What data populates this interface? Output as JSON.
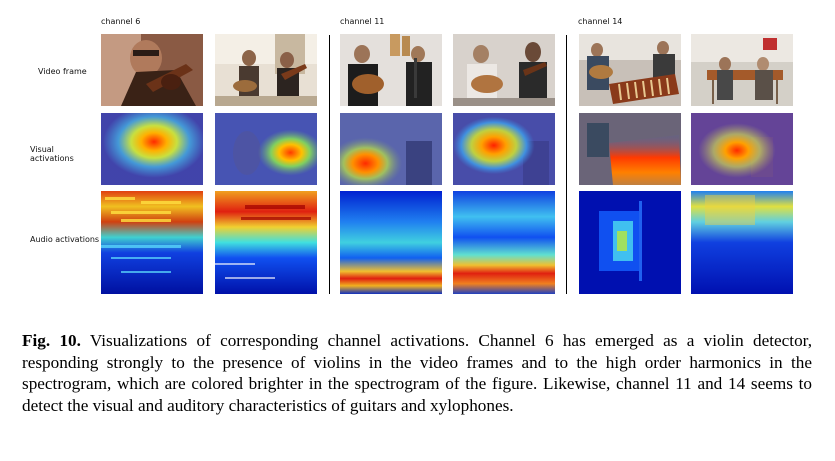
{
  "channels": [
    {
      "label": "channel 6"
    },
    {
      "label": "channel 11"
    },
    {
      "label": "channel 14"
    }
  ],
  "rows": {
    "video": "Video frame",
    "visual": "Visual activations",
    "audio": "Audio activations"
  },
  "caption": {
    "label": "Fig. 10.",
    "text": " Visualizations of corresponding channel activations. Channel 6 has emerged as a violin detector, responding strongly to the presence of violins in the video frames and to the high order harmonics in the spectrogram, which are colored brighter in the spectrogram of the figure. Likewise, channel 11 and 14 seems to detect the visual and auditory characteristics of guitars and xylophones."
  }
}
